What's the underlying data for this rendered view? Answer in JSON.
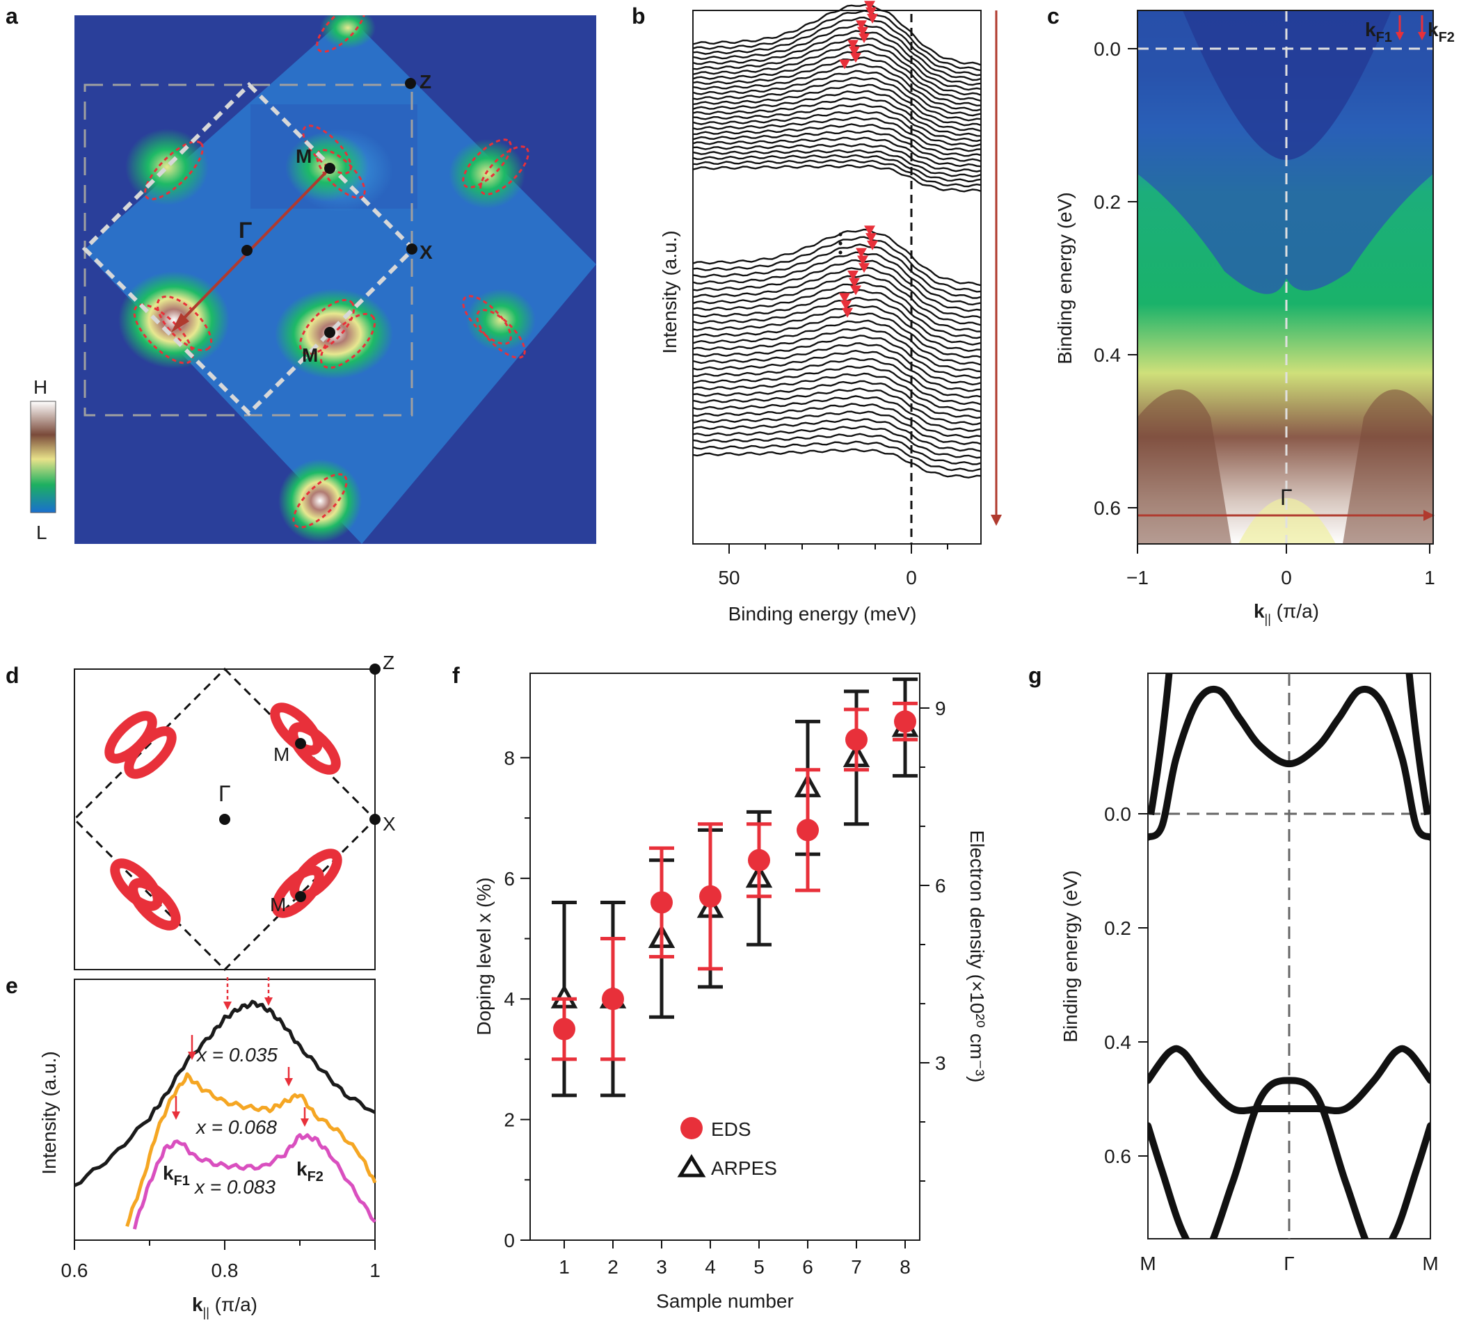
{
  "panels": {
    "a": {
      "label": "a",
      "points": {
        "Z": "Z",
        "M1": "M",
        "Gamma": "Γ",
        "X": "X",
        "M2": "M"
      },
      "colorbar": {
        "high": "H",
        "low": "L"
      }
    },
    "b": {
      "label": "b",
      "xlabel": "Binding energy (meV)",
      "ylabel": "Intensity (a.u.)",
      "ticks": [
        "50",
        "0"
      ]
    },
    "c": {
      "label": "c",
      "xlabel_main": "k",
      "xlabel_sub": "||",
      "xlabel_rest": " (π/a)",
      "ylabel": "Binding energy (eV)",
      "yticks": [
        "0.0",
        "0.2",
        "0.4",
        "0.6"
      ],
      "xticks": [
        "−1",
        "0",
        "1"
      ],
      "gamma": "Γ",
      "kf1_main": "k",
      "kf1_sub": "F1",
      "kf2_main": "k",
      "kf2_sub": "F2"
    },
    "d": {
      "label": "d",
      "points": {
        "Z": "Z",
        "X": "X",
        "Gamma": "Γ",
        "M1": "M",
        "M2": "M"
      }
    },
    "e": {
      "label": "e",
      "ylabel": "Intensity (a.u.)",
      "xlabel_main": "k",
      "xlabel_sub": "||",
      "xlabel_rest": " (π/a)",
      "xticks": [
        "0.6",
        "0.8",
        "1"
      ],
      "curve_labels": [
        "x = 0.035",
        "x = 0.068",
        "x = 0.083"
      ],
      "kf1_main": "k",
      "kf1_sub": "F1",
      "kf2_main": "k",
      "kf2_sub": "F2"
    },
    "f": {
      "label": "f"
    },
    "g": {
      "label": "g",
      "ylabel": "Binding energy (eV)",
      "yticks": [
        "0.0",
        "0.2",
        "0.4",
        "0.6"
      ],
      "xticks": [
        "M",
        "Γ",
        "M"
      ]
    }
  },
  "colors": {
    "eds": "#e8303a",
    "arpes": "#1a1a1a",
    "map_bg": "#2a3f9a",
    "arrow": "#b03a2e",
    "pink": "#d94fbf",
    "orange": "#f5a623"
  },
  "chart_data": [
    {
      "panel": "f",
      "type": "scatter",
      "xlabel": "Sample number",
      "ylabel": "Doping level x (%)",
      "ylabel2": "Electron density (×10²⁰ cm⁻³)",
      "xticks": [
        "1",
        "2",
        "3",
        "4",
        "5",
        "6",
        "7",
        "8"
      ],
      "yticks": [
        "0",
        "2",
        "4",
        "6",
        "8"
      ],
      "y2ticks": [
        "3",
        "6",
        "9"
      ],
      "xlim": [
        0.3,
        8.3
      ],
      "ylim": [
        0,
        9.4
      ],
      "series": [
        {
          "name": "EDS",
          "x": [
            1,
            2,
            3,
            4,
            5,
            6,
            7,
            8
          ],
          "y": [
            3.5,
            4.0,
            5.6,
            5.7,
            6.3,
            6.8,
            8.3,
            8.6
          ],
          "err": [
            0.5,
            1.0,
            0.9,
            1.2,
            0.6,
            1.0,
            0.5,
            0.3
          ]
        },
        {
          "name": "ARPES",
          "x": [
            1,
            2,
            3,
            4,
            5,
            6,
            7,
            8
          ],
          "y": [
            4.0,
            4.0,
            5.0,
            5.5,
            6.0,
            7.5,
            8.0,
            8.5
          ],
          "err": [
            1.6,
            1.6,
            1.3,
            1.3,
            1.1,
            1.1,
            1.1,
            0.8
          ]
        }
      ]
    },
    {
      "panel": "e",
      "type": "line",
      "xlim": [
        0.6,
        1.0
      ],
      "series": [
        {
          "name": "x = 0.035",
          "x": [
            0.6,
            0.65,
            0.7,
            0.72,
            0.75,
            0.78,
            0.8,
            0.82,
            0.84,
            0.86,
            0.88,
            0.9,
            0.93,
            0.96,
            1.0
          ],
          "y": [
            0.21,
            0.32,
            0.47,
            0.55,
            0.69,
            0.78,
            0.85,
            0.89,
            0.91,
            0.88,
            0.82,
            0.74,
            0.65,
            0.56,
            0.49
          ]
        },
        {
          "name": "x = 0.068",
          "x": [
            0.67,
            0.69,
            0.71,
            0.73,
            0.75,
            0.77,
            0.8,
            0.83,
            0.86,
            0.88,
            0.9,
            0.92,
            0.95,
            0.98,
            1.0
          ],
          "y": [
            0.06,
            0.22,
            0.42,
            0.55,
            0.63,
            0.58,
            0.53,
            0.51,
            0.5,
            0.53,
            0.56,
            0.48,
            0.42,
            0.33,
            0.22
          ]
        },
        {
          "name": "x = 0.083",
          "x": [
            0.68,
            0.7,
            0.72,
            0.74,
            0.76,
            0.79,
            0.82,
            0.85,
            0.88,
            0.9,
            0.92,
            0.94,
            0.97,
            1.0
          ],
          "y": [
            0.05,
            0.22,
            0.35,
            0.38,
            0.32,
            0.29,
            0.28,
            0.28,
            0.33,
            0.4,
            0.39,
            0.33,
            0.2,
            0.07
          ]
        }
      ]
    },
    {
      "panel": "g",
      "type": "line",
      "xlim": [
        -1,
        1
      ],
      "ylim": [
        -0.25,
        0.75
      ],
      "series": [
        {
          "name": "upper band",
          "x": [
            -1,
            -0.9,
            -0.8,
            -0.65,
            -0.5,
            -0.35,
            -0.2,
            0,
            0.2,
            0.35,
            0.5,
            0.65,
            0.8,
            0.9,
            1
          ],
          "y": [
            0.04,
            0.02,
            -0.1,
            -0.2,
            -0.22,
            -0.17,
            -0.12,
            -0.09,
            -0.12,
            -0.17,
            -0.22,
            -0.2,
            -0.1,
            0.02,
            0.04
          ]
        },
        {
          "name": "lower band 1",
          "x": [
            -1,
            -0.85,
            -0.75,
            -0.6,
            -0.4,
            -0.2,
            0,
            0.2,
            0.4,
            0.6,
            0.75,
            0.85,
            1
          ],
          "y": [
            0.47,
            0.42,
            0.42,
            0.47,
            0.52,
            0.52,
            0.52,
            0.52,
            0.52,
            0.47,
            0.42,
            0.42,
            0.47
          ]
        },
        {
          "name": "lower band 2",
          "x": [
            -1,
            -0.9,
            -0.75,
            -0.6,
            -0.4,
            -0.2,
            0,
            0.2,
            0.4,
            0.6,
            0.75,
            0.9,
            1
          ],
          "y": [
            0.55,
            0.63,
            0.74,
            0.78,
            0.65,
            0.5,
            0.47,
            0.5,
            0.65,
            0.78,
            0.74,
            0.63,
            0.55
          ]
        }
      ]
    }
  ]
}
